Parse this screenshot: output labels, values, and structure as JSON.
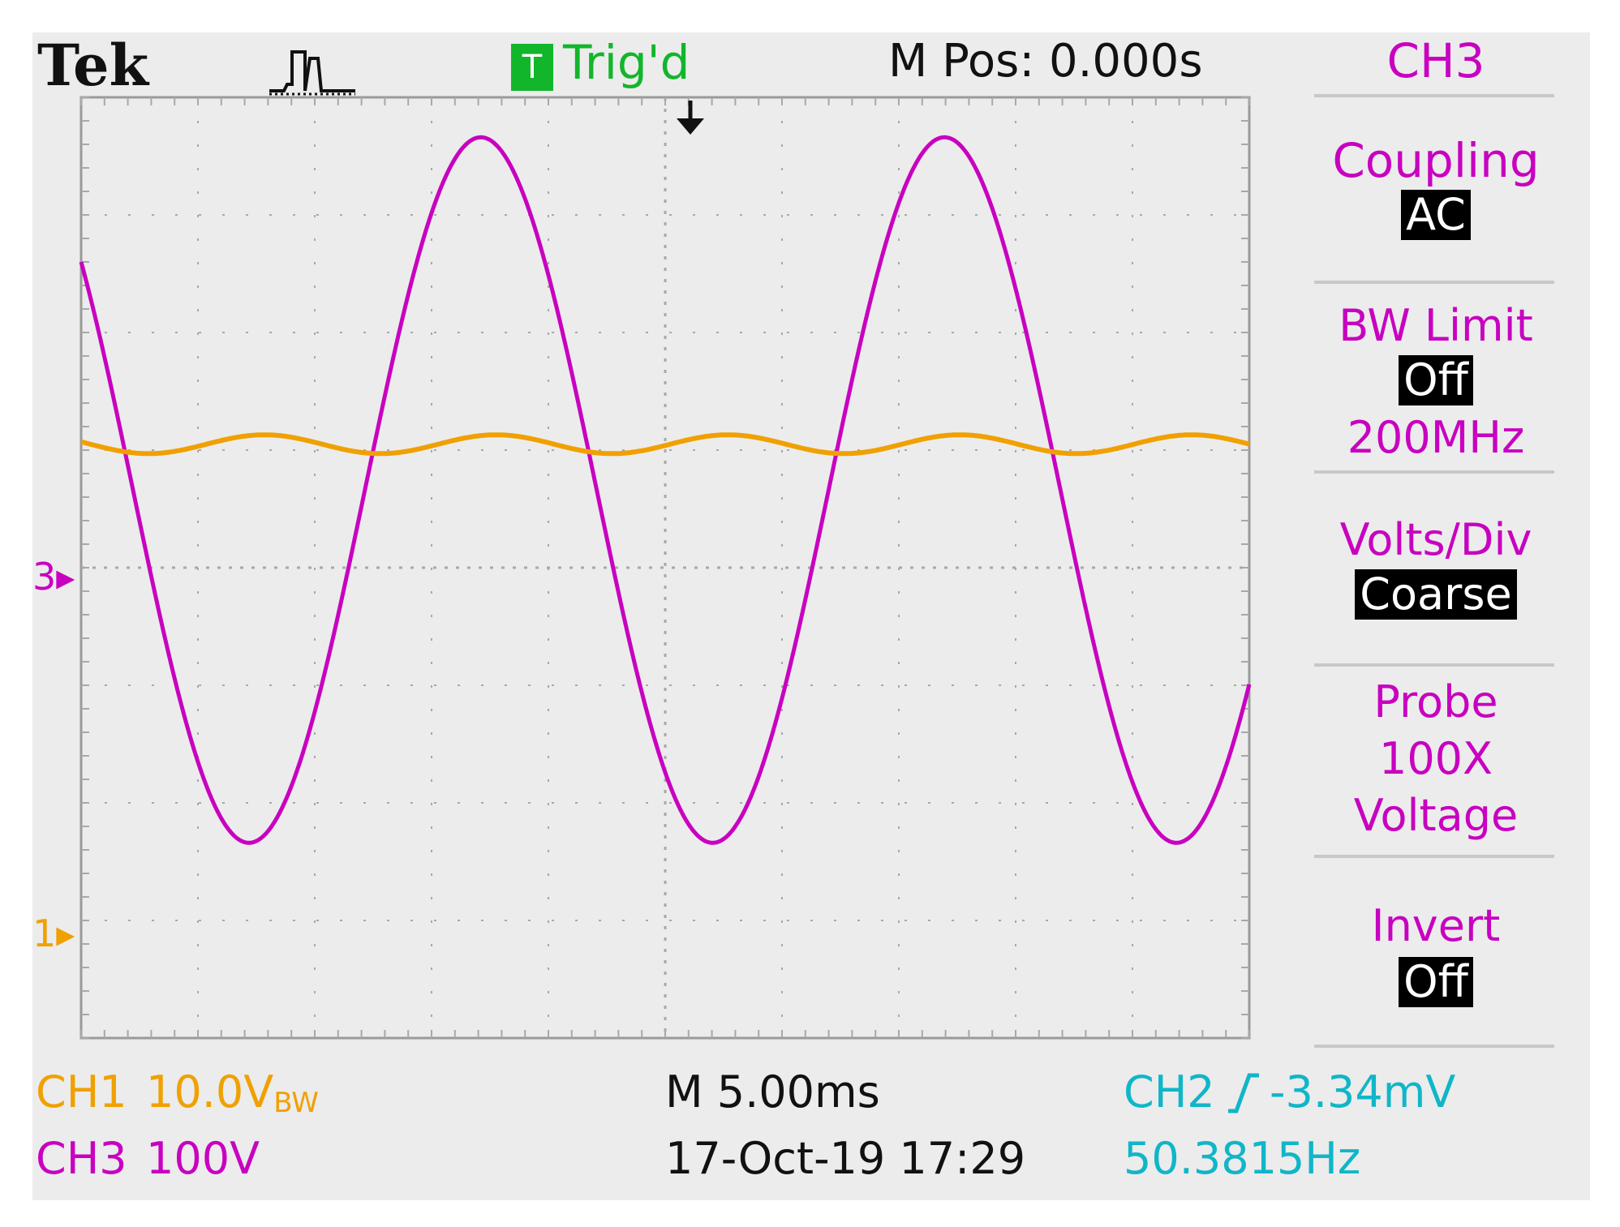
{
  "header": {
    "brand": "Tek",
    "acquisition_icon": "pulse-run-icon",
    "trigger_badge": "T",
    "trigger_status": "Trig'd",
    "main_position": "M Pos: 0.000s"
  },
  "menu": {
    "title": "CH3",
    "coupling": {
      "label": "Coupling",
      "value": "AC"
    },
    "bw_limit": {
      "label": "BW Limit",
      "value": "Off",
      "detail": "200MHz"
    },
    "volts_div": {
      "label": "Volts/Div",
      "value": "Coarse"
    },
    "probe": {
      "label": "Probe",
      "line1": "100X",
      "line2": "Voltage"
    },
    "invert": {
      "label": "Invert",
      "value": "Off"
    }
  },
  "markers": {
    "ch3": "3",
    "ch1": "1"
  },
  "footer": {
    "ch1_label": "CH1",
    "ch1_scale": "10.0V",
    "ch1_bw": "BW",
    "ch3_label": "CH3",
    "ch3_scale": "100V",
    "timebase": "M 5.00ms",
    "datetime": "17-Oct-19 17:29",
    "trigger_source": "CH2",
    "trigger_level": "-3.34mV",
    "frequency": "50.3815Hz"
  },
  "colors": {
    "ch1": "#f0a000",
    "ch3": "#c800c0",
    "ch2": "#10b6c8",
    "trig": "#11b62a",
    "background": "#ececec",
    "grid": "#a8a8a8"
  },
  "chart_data": {
    "type": "line",
    "title": "",
    "xlabel": "",
    "ylabel": "",
    "x_unit": "ms",
    "y_unit": "div",
    "xlim": [
      -25,
      25
    ],
    "ylim": [
      -4,
      4
    ],
    "grid": true,
    "series": [
      {
        "name": "CH3",
        "color": "#c800c0",
        "waveform": "sine",
        "frequency_hz": 50.3815,
        "amplitude_div": 3.0,
        "offset_div": 0.66,
        "x": [
          -25,
          -20.9,
          -16.1,
          -11.2,
          -6.2,
          -1.4,
          3.4,
          8.0,
          12.7,
          17.5,
          22.4,
          25
        ],
        "y": [
          2.6,
          -1.5,
          -2.36,
          1.1,
          3.66,
          0.5,
          -2.36,
          0.2,
          3.66,
          1.2,
          -2.36,
          -1.9
        ]
      },
      {
        "name": "CH1",
        "color": "#f0a000",
        "waveform": "sine",
        "frequency_hz": 100.763,
        "amplitude_div": 0.08,
        "offset_div": 1.05,
        "x": [
          -25,
          -22.8,
          -20.2,
          -17.4,
          -15.0,
          -12.5,
          -10.2,
          -7.6,
          -5.0,
          -2.6,
          0.0,
          2.5,
          5.0,
          7.5,
          10.0,
          12.5,
          15.0,
          17.5,
          20.0,
          22.5,
          25
        ],
        "y": [
          1.07,
          1.12,
          0.98,
          1.12,
          1.02,
          0.97,
          1.1,
          1.08,
          0.98,
          1.12,
          1.02,
          0.99,
          1.12,
          1.07,
          0.98,
          1.11,
          1.02,
          0.98,
          1.11,
          1.05,
          1.05
        ]
      }
    ]
  }
}
